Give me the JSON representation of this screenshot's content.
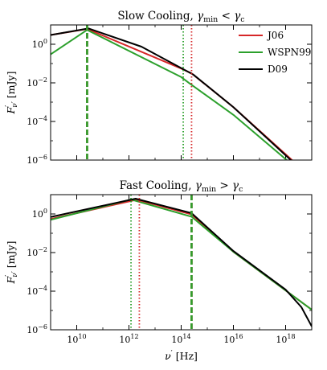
{
  "chart_data": [
    {
      "type": "line",
      "title": "Slow Cooling, γmin < γc",
      "title_parts": {
        "lead": "Slow Cooling, ",
        "gamma": "γ",
        "sub1": "min",
        "rel": " < ",
        "sub2": "c"
      },
      "xlabel": "",
      "ylabel": "F′ν′ [mJy]",
      "xscale": "log",
      "yscale": "log",
      "xlim": [
        1000000000.0,
        1e+19
      ],
      "ylim": [
        1e-06,
        10
      ],
      "xticks": [
        10000000000.0,
        1000000000000.0,
        100000000000000.0,
        1e+16,
        1e+18
      ],
      "yticks": [
        {
          "value": 1,
          "base": "10",
          "exp": "0"
        },
        {
          "value": 0.01,
          "base": "10",
          "exp": "−2"
        },
        {
          "value": 0.0001,
          "base": "10",
          "exp": "−4"
        },
        {
          "value": 1e-06,
          "base": "10",
          "exp": "−6"
        }
      ],
      "legend_position": "top-right",
      "series": [
        {
          "name": "J06",
          "color": "#d62728",
          "points": [
            [
              1000000000.0,
              3.0
            ],
            [
              25000000000.0,
              6.2
            ],
            [
              100000000000000.0,
              0.055
            ],
            [
              250000000000000.0,
              0.031
            ],
            [
              1e+16,
              0.00055
            ],
            [
              1e+19,
              1.2e-07
            ]
          ]
        },
        {
          "name": "WSPN99",
          "color": "#2ca02c",
          "points": [
            [
              1000000000.0,
              0.3
            ],
            [
              25000000000.0,
              5.5
            ],
            [
              100000000000000.0,
              0.02
            ],
            [
              200000000000000.0,
              0.0098
            ],
            [
              1e+16,
              0.00022
            ],
            [
              1e+19,
              8e-08
            ]
          ]
        },
        {
          "name": "D09",
          "color": "#000000",
          "points": [
            [
              1000000000.0,
              3.0
            ],
            [
              28000000000.0,
              6.6
            ],
            [
              3000000000000.0,
              0.75
            ],
            [
              100000000000000.0,
              0.058
            ],
            [
              300000000000000.0,
              0.026
            ],
            [
              1e+16,
              0.00055
            ],
            [
              1e+19,
              1e-07
            ]
          ]
        }
      ],
      "vlines": [
        {
          "x": 25000000000.0,
          "style": "dashed",
          "color": "#d62728"
        },
        {
          "x": 25000000000.0,
          "style": "dashed",
          "color": "#2ca02c"
        },
        {
          "x": 120000000000000.0,
          "style": "dotted",
          "color": "#2ca02c"
        },
        {
          "x": 250000000000000.0,
          "style": "dotted",
          "color": "#d62728"
        }
      ]
    },
    {
      "type": "line",
      "title": "Fast Cooling, γmin > γc",
      "title_parts": {
        "lead": "Fast Cooling, ",
        "gamma": "γ",
        "sub1": "min",
        "rel": " > ",
        "sub2": "c"
      },
      "xlabel": "ν′ [Hz]",
      "ylabel": "F′ν′ [mJy]",
      "xscale": "log",
      "yscale": "log",
      "xlim": [
        1000000000.0,
        1e+19
      ],
      "ylim": [
        1e-06,
        10
      ],
      "xticks": [
        {
          "value": 10000000000.0,
          "base": "10",
          "exp": "10"
        },
        {
          "value": 1000000000000.0,
          "base": "10",
          "exp": "12"
        },
        {
          "value": 100000000000000.0,
          "base": "10",
          "exp": "14"
        },
        {
          "value": 1e+16,
          "base": "10",
          "exp": "16"
        },
        {
          "value": 1e+18,
          "base": "10",
          "exp": "18"
        }
      ],
      "yticks": [
        {
          "value": 1,
          "base": "10",
          "exp": "0"
        },
        {
          "value": 0.01,
          "base": "10",
          "exp": "−2"
        },
        {
          "value": 0.0001,
          "base": "10",
          "exp": "−4"
        },
        {
          "value": 1e-06,
          "base": "10",
          "exp": "−6"
        }
      ],
      "series": [
        {
          "name": "J06",
          "color": "#d62728",
          "points": [
            [
              1000000000.0,
              0.55
            ],
            [
              2000000000000.0,
              5.5
            ],
            [
              250000000000000.0,
              0.95
            ],
            [
              1e+16,
              0.011
            ],
            [
              1e+18,
              0.00011
            ],
            [
              1e+19,
              1.1e-05
            ]
          ]
        },
        {
          "name": "WSPN99",
          "color": "#2ca02c",
          "points": [
            [
              1000000000.0,
              0.5
            ],
            [
              1200000000000.0,
              5.6
            ],
            [
              250000000000000.0,
              0.72
            ],
            [
              1e+16,
              0.011
            ],
            [
              1e+18,
              0.00011
            ],
            [
              1e+19,
              1.1e-05
            ]
          ]
        },
        {
          "name": "D09",
          "color": "#000000",
          "points": [
            [
              1000000000.0,
              0.7
            ],
            [
              1800000000000.0,
              6.2
            ],
            [
              250000000000000.0,
              1.1
            ],
            [
              1e+16,
              0.012
            ],
            [
              1e+18,
              0.00012
            ],
            [
              4e+18,
              1.5e-05
            ],
            [
              1e+19,
              1.5e-06
            ]
          ]
        }
      ],
      "vlines": [
        {
          "x": 1200000000000.0,
          "style": "dotted",
          "color": "#2ca02c"
        },
        {
          "x": 2500000000000.0,
          "style": "dotted",
          "color": "#d62728"
        },
        {
          "x": 250000000000000.0,
          "style": "dashed",
          "color": "#d62728"
        },
        {
          "x": 250000000000000.0,
          "style": "dashed",
          "color": "#2ca02c"
        }
      ]
    }
  ]
}
